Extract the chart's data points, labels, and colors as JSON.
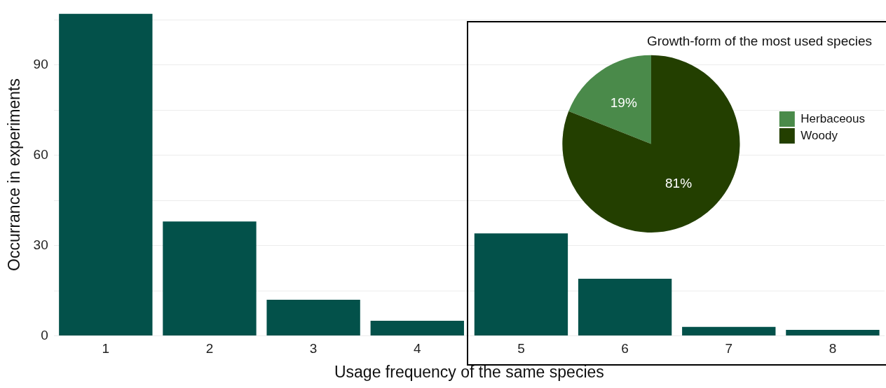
{
  "chart_data": [
    {
      "type": "bar",
      "xlabel": "Usage frequency of the same species",
      "ylabel": "Occurrance in experiments",
      "categories": [
        "1",
        "2",
        "3",
        "4",
        "5",
        "6",
        "7",
        "8"
      ],
      "values": [
        107,
        38,
        12,
        5,
        34,
        19,
        3,
        2
      ],
      "color": "#03514a",
      "ylim": [
        0,
        107
      ],
      "yticks": [
        0,
        {
          "value": 15,
          "label": null
        },
        30,
        {
          "value": 45,
          "label": null
        },
        60,
        {
          "value": 75,
          "label": null
        },
        90,
        {
          "value": 105,
          "label": null
        }
      ],
      "grid": "y"
    },
    {
      "type": "pie",
      "title": "Growth-form of the most used species",
      "categories": [
        "Herbaceous",
        "Woody"
      ],
      "values": [
        19,
        81
      ],
      "colors": [
        "#4a8a4a",
        "#233f00"
      ],
      "value_labels": [
        "19%",
        "81%"
      ],
      "legend": "right"
    }
  ]
}
